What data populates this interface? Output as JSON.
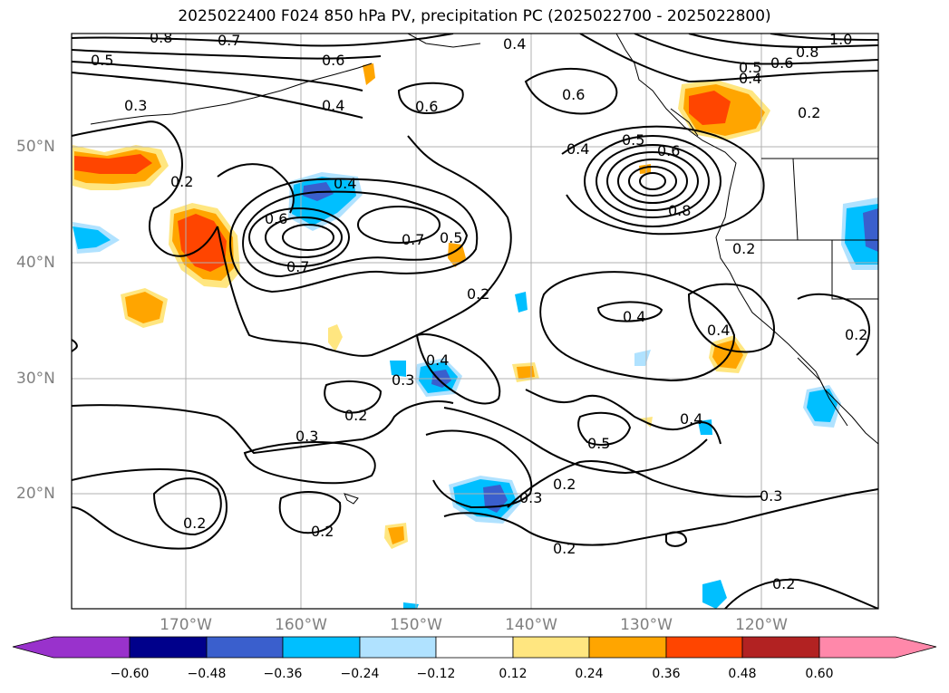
{
  "title": "2025022400 F024 850 hPa PV, precipitation PC (2025022700 - 2025022800)",
  "map": {
    "lat_labels": [
      "50°N",
      "40°N",
      "30°N",
      "20°N"
    ],
    "lon_labels": [
      "170°W",
      "160°W",
      "150°W",
      "140°W",
      "130°W",
      "120°W"
    ],
    "contour_labels": [
      "0.8",
      "0.7",
      "0.5",
      "0.6",
      "0.4",
      "0.3",
      "0.4",
      "0.6",
      "0.6",
      "0.4",
      "0.5",
      "0.6",
      "1.0",
      "0.8",
      "0.6",
      "0.5",
      "0.4",
      "0.2",
      "0.2",
      "0.4",
      "0.6",
      "0.7",
      "0.7",
      "0.5",
      "0.2",
      "0.2",
      "0.4",
      "0.4",
      "0.2",
      "0.4",
      "0.3",
      "0.2",
      "0.3",
      "0.5",
      "0.4",
      "0.2",
      "0.3",
      "0.2",
      "0.2",
      "0.2",
      "0.3",
      "0.2",
      "0.8"
    ],
    "colors": {
      "land_outline": "#000000",
      "grid": "#b0b0b0",
      "contour": "#000000"
    }
  },
  "colorbar": {
    "colors": [
      "#9932cc",
      "#00008b",
      "#3a5fcd",
      "#00bfff",
      "#b0e2ff",
      "#ffffff",
      "#ffe680",
      "#ffa500",
      "#ff4500",
      "#b22222",
      "#ff88aa"
    ],
    "ticks": [
      "−0.60",
      "−0.48",
      "−0.36",
      "−0.24",
      "−0.12",
      "0.12",
      "0.24",
      "0.36",
      "0.48",
      "0.60"
    ]
  }
}
